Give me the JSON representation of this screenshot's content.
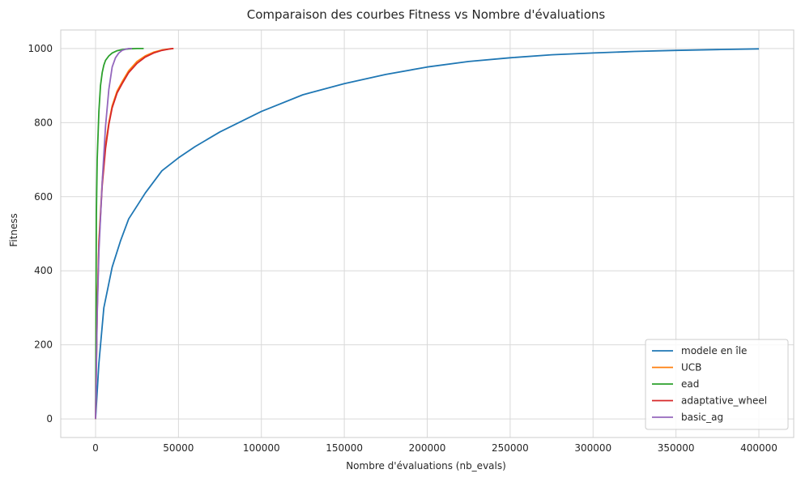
{
  "chart_data": {
    "type": "line",
    "title": "Comparaison des courbes Fitness vs Nombre d'évaluations",
    "xlabel": "Nombre d'évaluations (nb_evals)",
    "ylabel": "Fitness",
    "xlim": [
      -21000,
      421000
    ],
    "ylim": [
      -50,
      1050
    ],
    "xticks": [
      0,
      50000,
      100000,
      150000,
      200000,
      250000,
      300000,
      350000,
      400000
    ],
    "xtick_labels": [
      "0",
      "50000",
      "100000",
      "150000",
      "200000",
      "250000",
      "300000",
      "350000",
      "400000"
    ],
    "yticks": [
      0,
      200,
      400,
      600,
      800,
      1000
    ],
    "ytick_labels": [
      "0",
      "200",
      "400",
      "600",
      "800",
      "1000"
    ],
    "grid": true,
    "legend_position": "lower-right",
    "series": [
      {
        "name": "modele en île",
        "color": "#1f77b4",
        "x": [
          0,
          2000,
          5000,
          10000,
          15000,
          20000,
          25000,
          30000,
          40000,
          50000,
          60000,
          75000,
          100000,
          125000,
          150000,
          175000,
          200000,
          225000,
          250000,
          275000,
          300000,
          325000,
          350000,
          375000,
          400000
        ],
        "y": [
          0,
          150,
          300,
          410,
          480,
          540,
          575,
          610,
          670,
          705,
          735,
          775,
          830,
          875,
          905,
          930,
          950,
          965,
          975,
          983,
          988,
          992,
          995,
          997,
          999
        ]
      },
      {
        "name": "UCB",
        "color": "#ff7f0e",
        "x": [
          0,
          1000,
          2000,
          4000,
          6000,
          8000,
          10000,
          13000,
          16000,
          20000,
          25000,
          30000,
          35000,
          40000,
          45000,
          47000
        ],
        "y": [
          0,
          300,
          480,
          640,
          740,
          800,
          845,
          885,
          910,
          940,
          965,
          980,
          990,
          996,
          999,
          1000
        ]
      },
      {
        "name": "ead",
        "color": "#2ca02c",
        "x": [
          0,
          500,
          1000,
          2000,
          3000,
          4000,
          5000,
          6000,
          8000,
          10000,
          13000,
          16000,
          20000,
          25000,
          29000
        ],
        "y": [
          0,
          550,
          700,
          830,
          900,
          935,
          955,
          968,
          980,
          988,
          994,
          997,
          999,
          1000,
          1000
        ]
      },
      {
        "name": "adaptative_wheel",
        "color": "#d62728",
        "x": [
          0,
          1000,
          2000,
          4000,
          6000,
          8000,
          10000,
          13000,
          16000,
          20000,
          25000,
          30000,
          35000,
          40000,
          45000,
          47000
        ],
        "y": [
          0,
          290,
          470,
          630,
          730,
          795,
          840,
          880,
          905,
          935,
          960,
          977,
          988,
          995,
          999,
          1000
        ]
      },
      {
        "name": "basic_ag",
        "color": "#9467bd",
        "x": [
          0,
          1000,
          2000,
          4000,
          6000,
          8000,
          10000,
          12000,
          14000,
          16000,
          18000,
          20000,
          22000
        ],
        "y": [
          0,
          280,
          450,
          640,
          790,
          890,
          950,
          975,
          988,
          995,
          998,
          1000,
          1000
        ]
      }
    ]
  }
}
